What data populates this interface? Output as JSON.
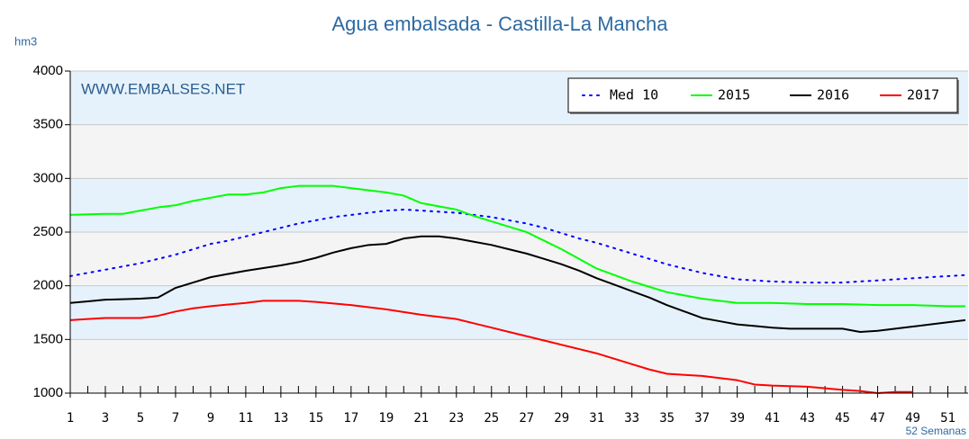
{
  "chart_data": {
    "type": "line",
    "title": "Agua embalsada - Castilla-La Mancha",
    "y_label": "hm3",
    "x_label": "52 Semanas",
    "annotation": "WWW.EMBALSES.NET",
    "x": [
      1,
      2,
      3,
      4,
      5,
      6,
      7,
      8,
      9,
      10,
      11,
      12,
      13,
      14,
      15,
      16,
      17,
      18,
      19,
      20,
      21,
      22,
      23,
      24,
      25,
      26,
      27,
      28,
      29,
      30,
      31,
      32,
      33,
      34,
      35,
      36,
      37,
      38,
      39,
      40,
      41,
      42,
      43,
      44,
      45,
      46,
      47,
      48,
      49,
      50,
      51,
      52
    ],
    "xlim": [
      1,
      52
    ],
    "xticks": [
      1,
      3,
      5,
      7,
      9,
      11,
      13,
      15,
      17,
      19,
      21,
      23,
      25,
      27,
      29,
      31,
      33,
      35,
      37,
      39,
      41,
      43,
      45,
      47,
      49,
      51
    ],
    "ylim": [
      1000,
      4000
    ],
    "yticks": [
      1000,
      1500,
      2000,
      2500,
      3000,
      3500,
      4000
    ],
    "grid": true,
    "legend": "top-right",
    "series": [
      {
        "name": "Med 10",
        "color": "#0000ff",
        "dash": "dotted",
        "values": [
          2090,
          2120,
          2150,
          2180,
          2210,
          2250,
          2290,
          2340,
          2390,
          2420,
          2460,
          2500,
          2540,
          2580,
          2610,
          2640,
          2660,
          2680,
          2700,
          2710,
          2700,
          2690,
          2680,
          2660,
          2640,
          2610,
          2580,
          2540,
          2490,
          2440,
          2400,
          2350,
          2300,
          2250,
          2200,
          2160,
          2120,
          2090,
          2060,
          2050,
          2040,
          2035,
          2030,
          2030,
          2030,
          2040,
          2050,
          2060,
          2070,
          2080,
          2090,
          2100
        ]
      },
      {
        "name": "2015",
        "color": "#00ff00",
        "values": [
          2660,
          2665,
          2670,
          2670,
          2700,
          2730,
          2750,
          2790,
          2820,
          2850,
          2850,
          2870,
          2910,
          2930,
          2930,
          2930,
          2910,
          2890,
          2870,
          2840,
          2770,
          2740,
          2710,
          2650,
          2600,
          2550,
          2500,
          2420,
          2340,
          2250,
          2160,
          2100,
          2040,
          1990,
          1940,
          1910,
          1880,
          1860,
          1840,
          1840,
          1840,
          1835,
          1830,
          1830,
          1830,
          1825,
          1820,
          1820,
          1820,
          1815,
          1810,
          1810
        ]
      },
      {
        "name": "2016",
        "color": "#000000",
        "values": [
          1840,
          1855,
          1870,
          1875,
          1880,
          1890,
          1980,
          2030,
          2080,
          2110,
          2140,
          2165,
          2190,
          2220,
          2260,
          2310,
          2350,
          2380,
          2390,
          2440,
          2460,
          2460,
          2440,
          2410,
          2380,
          2340,
          2300,
          2250,
          2200,
          2140,
          2070,
          2010,
          1950,
          1890,
          1820,
          1760,
          1700,
          1670,
          1640,
          1625,
          1610,
          1600,
          1600,
          1600,
          1600,
          1570,
          1580,
          1600,
          1620,
          1640,
          1660,
          1680
        ]
      },
      {
        "name": "2017",
        "color": "#ff0000",
        "values": [
          1680,
          1690,
          1700,
          1700,
          1700,
          1720,
          1760,
          1790,
          1810,
          1825,
          1840,
          1860,
          1860,
          1860,
          1850,
          1835,
          1820,
          1800,
          1780,
          1755,
          1730,
          1710,
          1690,
          1650,
          1610,
          1570,
          1530,
          1490,
          1450,
          1410,
          1370,
          1320,
          1270,
          1220,
          1180,
          1170,
          1160,
          1140,
          1120,
          1080,
          1070,
          1065,
          1060,
          1045,
          1030,
          1020,
          1000,
          1010,
          1010,
          null,
          null,
          null
        ]
      }
    ]
  }
}
